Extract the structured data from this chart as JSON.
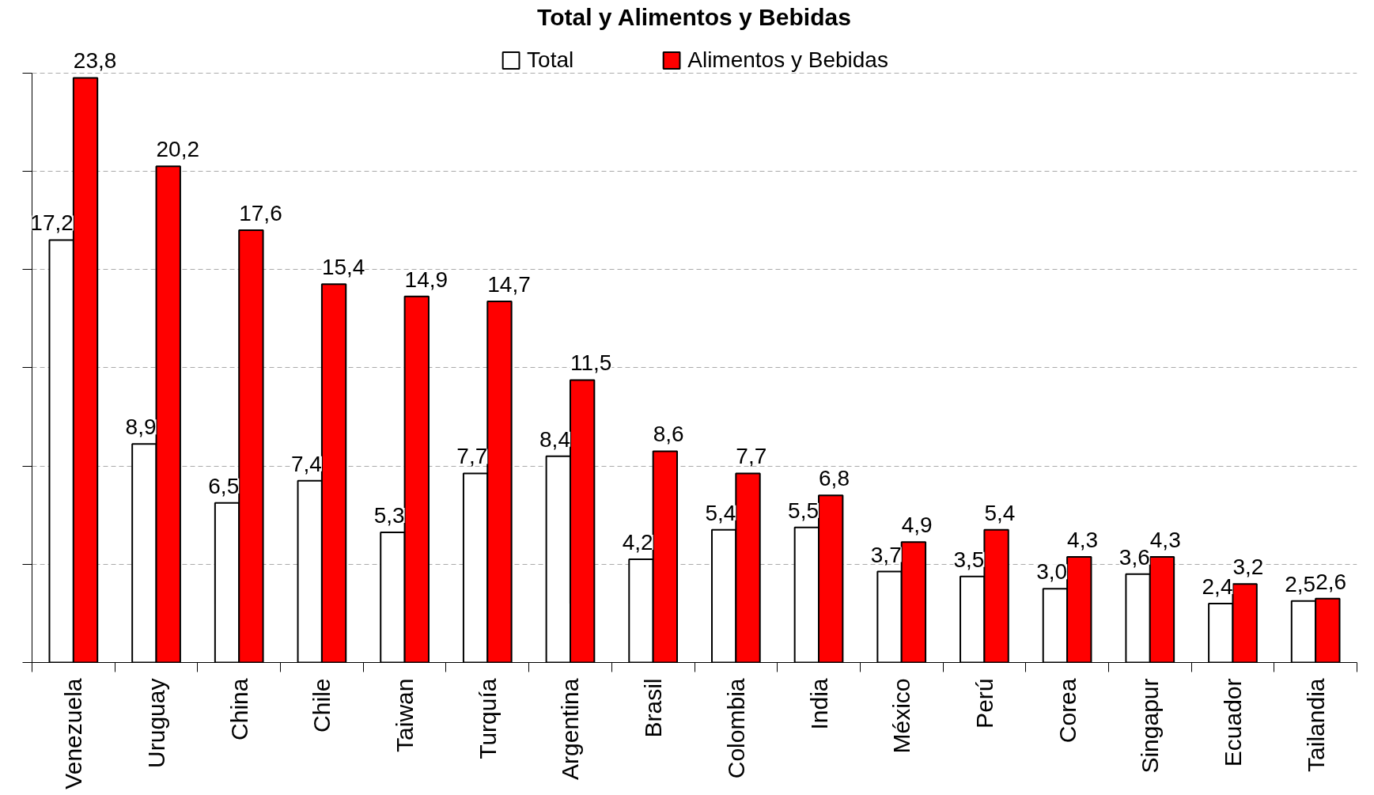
{
  "chart_data": {
    "type": "bar",
    "title": "Total y Alimentos y Bebidas",
    "categories": [
      "Venezuela",
      "Uruguay",
      "China",
      "Chile",
      "Taiwan",
      "Turquía",
      "Argentina",
      "Brasil",
      "Colombia",
      "India",
      "México",
      "Perú",
      "Corea",
      "Singapur",
      "Ecuador",
      "Tailandia"
    ],
    "series": [
      {
        "name": "Total",
        "color": "#ffffff",
        "values": [
          17.2,
          8.9,
          6.5,
          7.4,
          5.3,
          7.7,
          8.4,
          4.2,
          5.4,
          5.5,
          3.7,
          3.5,
          3.0,
          3.6,
          2.4,
          2.5
        ],
        "value_labels": [
          "17,2",
          "8,9",
          "6,5",
          "7,4",
          "5,3",
          "7,7",
          "8,4",
          "4,2",
          "5,4",
          "5,5",
          "3,7",
          "3,5",
          "3,0",
          "3,6",
          "2,4",
          "2,5"
        ]
      },
      {
        "name": "Alimentos y Bebidas",
        "color": "#ff0000",
        "values": [
          23.8,
          20.2,
          17.6,
          15.4,
          14.9,
          14.7,
          11.5,
          8.6,
          7.7,
          6.8,
          4.9,
          5.4,
          4.3,
          4.3,
          3.2,
          2.6
        ],
        "value_labels": [
          "23,8",
          "20,2",
          "17,6",
          "15,4",
          "14,9",
          "14,7",
          "11,5",
          "8,6",
          "7,7",
          "6,8",
          "4,9",
          "5,4",
          "4,3",
          "4,3",
          "3,2",
          "2,6"
        ]
      }
    ],
    "ylim": [
      0,
      24
    ],
    "yticks": [
      {
        "value": 0,
        "label": null
      },
      {
        "value": 4,
        "label": null
      },
      {
        "value": 8,
        "label": null
      },
      {
        "value": 12,
        "label": null
      },
      {
        "value": 16,
        "label": null
      },
      {
        "value": 20,
        "label": null
      },
      {
        "value": 24,
        "label": null
      }
    ],
    "grid": "y",
    "legend": "top",
    "tick_labels": "x"
  }
}
